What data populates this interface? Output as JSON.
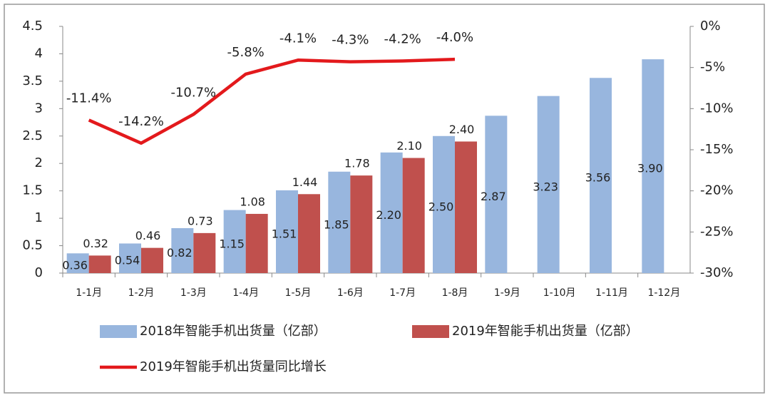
{
  "chart_data": {
    "type": "bar",
    "categories": [
      "1-1月",
      "1-2月",
      "1-3月",
      "1-4月",
      "1-5月",
      "1-6月",
      "1-7月",
      "1-8月",
      "1-9月",
      "1-10月",
      "1-11月",
      "1-12月"
    ],
    "series": [
      {
        "name": "2018年智能手机出货量（亿部）",
        "color": "#98b6de",
        "values": [
          0.36,
          0.54,
          0.82,
          1.15,
          1.51,
          1.85,
          2.2,
          2.5,
          2.87,
          3.23,
          3.56,
          3.9
        ],
        "value_labels": [
          "0.36",
          "0.54",
          "0.82",
          "1.15",
          "1.51",
          "1.85",
          "2.20",
          "2.50",
          "2.87",
          "3.23",
          "3.56",
          "3.90"
        ]
      },
      {
        "name": "2019年智能手机出货量（亿部）",
        "color": "#c0504d",
        "values": [
          0.32,
          0.46,
          0.73,
          1.08,
          1.44,
          1.78,
          2.1,
          2.4,
          null,
          null,
          null,
          null
        ],
        "value_labels": [
          "0.32",
          "0.46",
          "0.73",
          "1.08",
          "1.44",
          "1.78",
          "2.10",
          "2.40",
          null,
          null,
          null,
          null
        ]
      },
      {
        "name": "2019年智能手机出货量同比增长",
        "color": "#e3191c",
        "type": "line",
        "axis": "y2",
        "values": [
          -11.4,
          -14.2,
          -10.7,
          -5.8,
          -4.1,
          -4.3,
          -4.2,
          -4.0,
          null,
          null,
          null,
          null
        ],
        "value_labels": [
          "-11.4%",
          "-14.2%",
          "-10.7%",
          "-5.8%",
          "-4.1%",
          "-4.3%",
          "-4.2%",
          "-4.0%",
          null,
          null,
          null,
          null
        ]
      }
    ],
    "ylim": [
      0,
      4.5
    ],
    "yticks": [
      0,
      0.5,
      1,
      1.5,
      2,
      2.5,
      3,
      3.5,
      4,
      4.5
    ],
    "y2lim": [
      -30,
      0
    ],
    "y2ticks": [
      {
        "value": 0,
        "label": "0%"
      },
      {
        "value": -5,
        "label": "-5%"
      },
      {
        "value": -10,
        "label": "-10%"
      },
      {
        "value": -15,
        "label": "-15%"
      },
      {
        "value": -20,
        "label": "-20%"
      },
      {
        "value": -25,
        "label": "-25%"
      },
      {
        "value": -30,
        "label": "-30%"
      }
    ]
  }
}
